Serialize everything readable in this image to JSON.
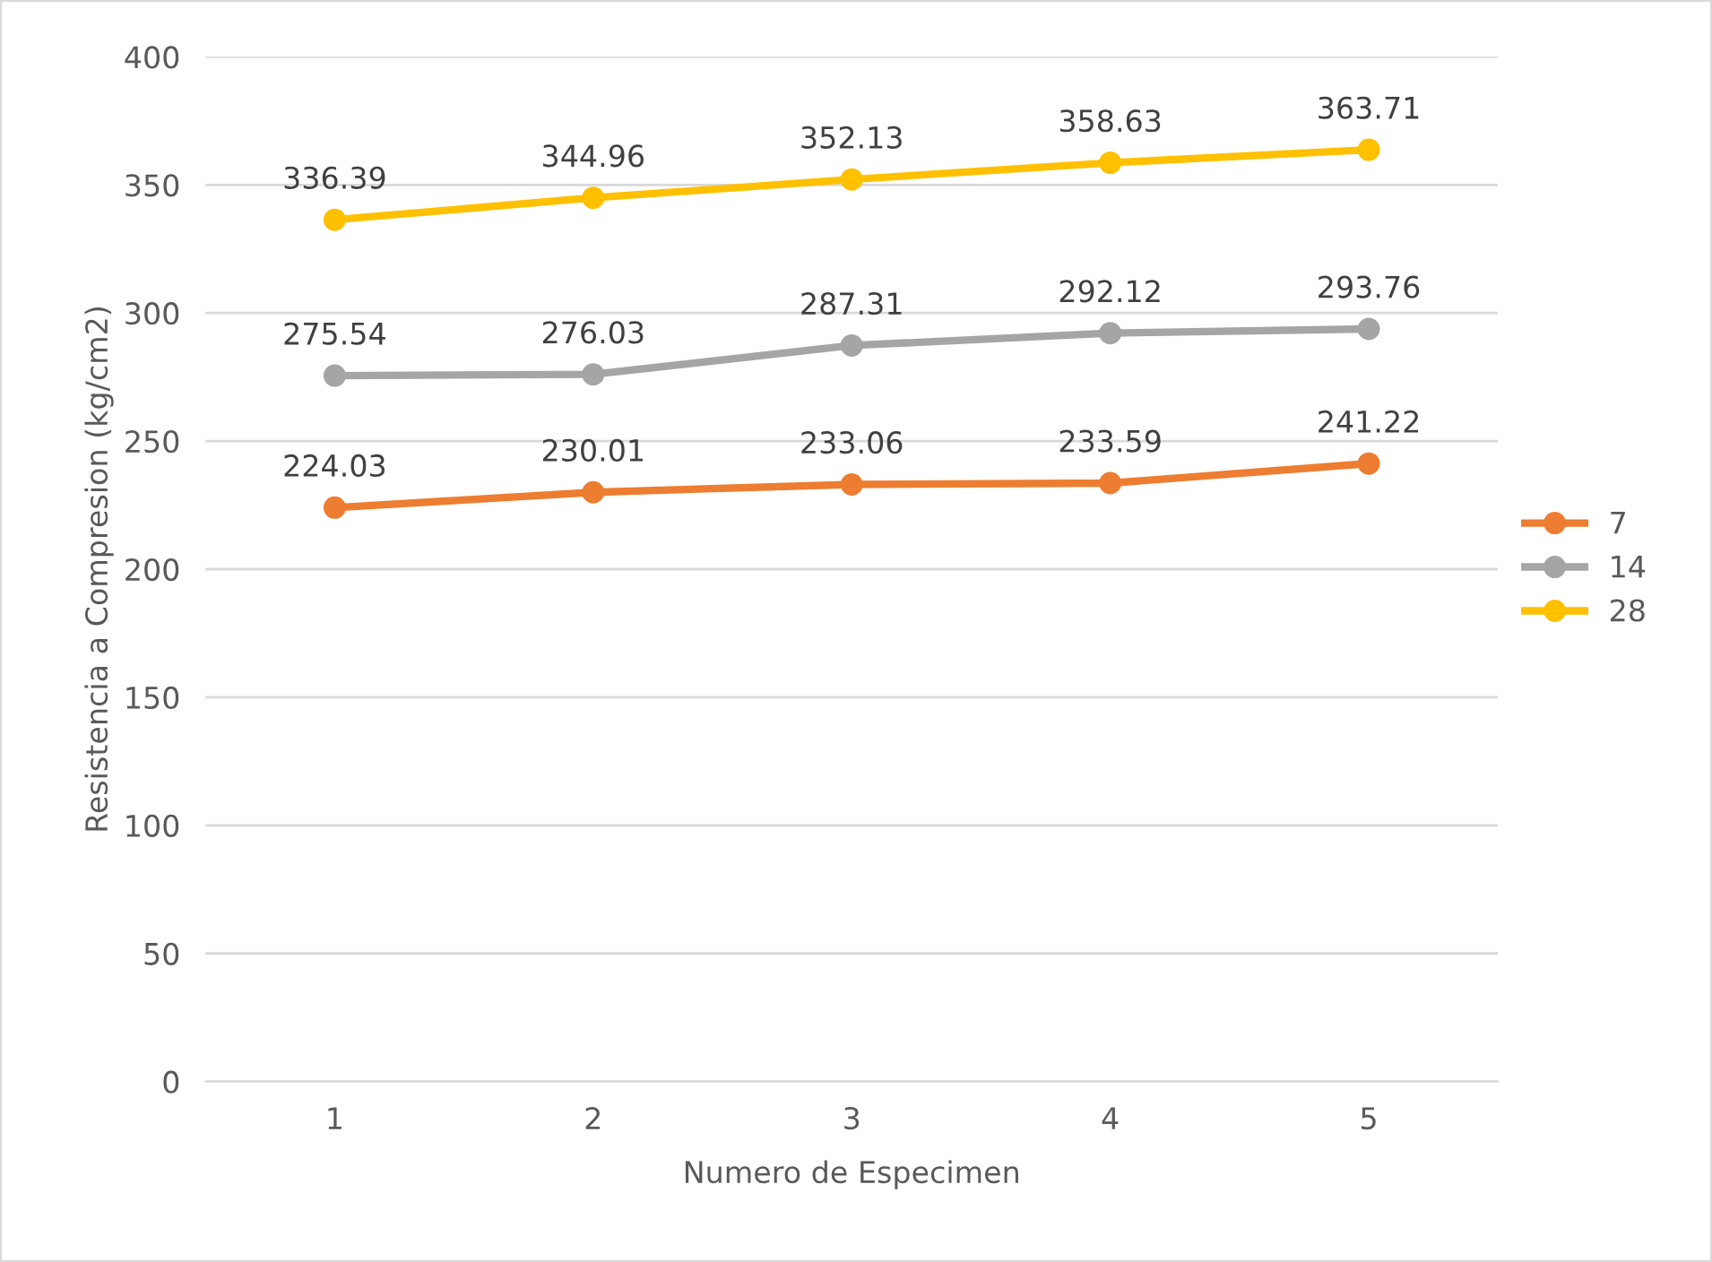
{
  "chart_data": {
    "type": "line",
    "xlabel": "Numero de Especimen",
    "ylabel": "Resistencia a Compresion (kg/cm2)",
    "categories": [
      "1",
      "2",
      "3",
      "4",
      "5"
    ],
    "series": [
      {
        "name": "7",
        "color": "#ed7d31",
        "values": [
          224.03,
          230.01,
          233.06,
          233.59,
          241.22
        ]
      },
      {
        "name": "14",
        "color": "#a5a5a5",
        "values": [
          275.54,
          276.03,
          287.31,
          292.12,
          293.76
        ]
      },
      {
        "name": "28",
        "color": "#ffc000",
        "values": [
          336.39,
          344.96,
          352.13,
          358.63,
          363.71
        ]
      }
    ],
    "ylim": [
      0,
      400
    ],
    "yticks": [
      0,
      50,
      100,
      150,
      200,
      250,
      300,
      350,
      400
    ],
    "grid": "y",
    "legend": "right",
    "marker": "circle",
    "line_style": "solid",
    "data_labels": true
  }
}
